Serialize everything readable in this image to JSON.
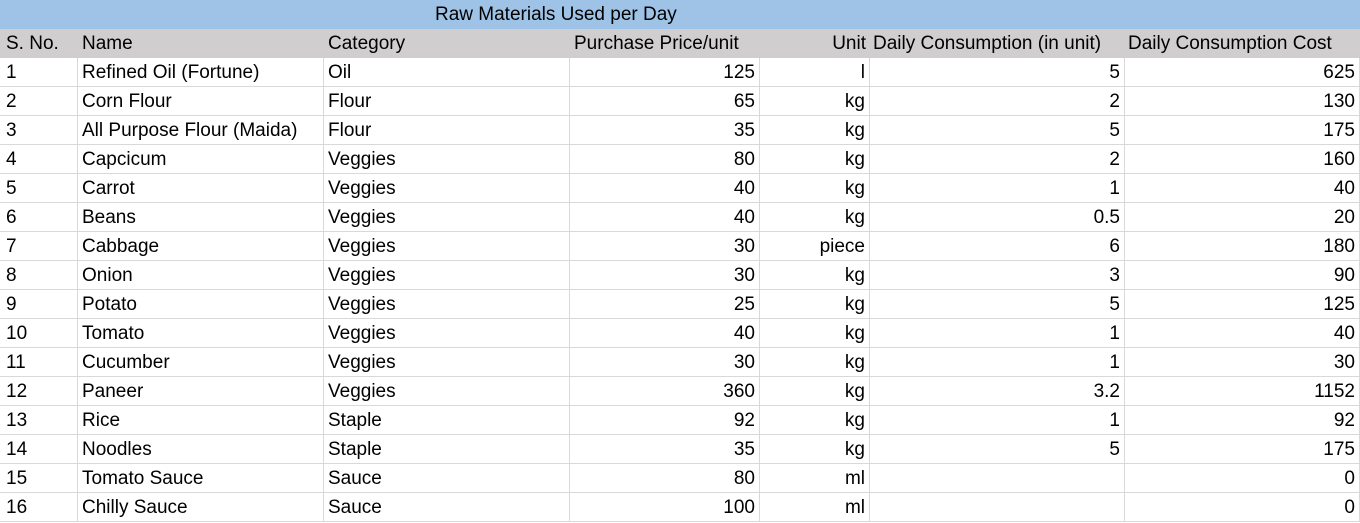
{
  "sheet": {
    "title": "Raw Materials Used per Day",
    "headers": [
      "S. No.",
      "Name",
      "Category",
      "Purchase Price/unit",
      "Unit",
      "Daily Consumption (in unit)",
      "Daily Consumption Cost"
    ],
    "rows": [
      [
        "1",
        "Refined Oil (Fortune)",
        "Oil",
        "125",
        "l",
        "5",
        "625"
      ],
      [
        "2",
        "Corn Flour",
        "Flour",
        "65",
        "kg",
        "2",
        "130"
      ],
      [
        "3",
        "All Purpose Flour (Maida)",
        "Flour",
        "35",
        "kg",
        "5",
        "175"
      ],
      [
        "4",
        "Capcicum",
        "Veggies",
        "80",
        "kg",
        "2",
        "160"
      ],
      [
        "5",
        "Carrot",
        "Veggies",
        "40",
        "kg",
        "1",
        "40"
      ],
      [
        "6",
        "Beans",
        "Veggies",
        "40",
        "kg",
        "0.5",
        "20"
      ],
      [
        "7",
        "Cabbage",
        "Veggies",
        "30",
        "piece",
        "6",
        "180"
      ],
      [
        "8",
        "Onion",
        "Veggies",
        "30",
        "kg",
        "3",
        "90"
      ],
      [
        "9",
        "Potato",
        "Veggies",
        "25",
        "kg",
        "5",
        "125"
      ],
      [
        "10",
        "Tomato",
        "Veggies",
        "40",
        "kg",
        "1",
        "40"
      ],
      [
        "11",
        "Cucumber",
        "Veggies",
        "30",
        "kg",
        "1",
        "30"
      ],
      [
        "12",
        "Paneer",
        "Veggies",
        "360",
        "kg",
        "3.2",
        "1152"
      ],
      [
        "13",
        "Rice",
        "Staple",
        "92",
        "kg",
        "1",
        "92"
      ],
      [
        "14",
        "Noodles",
        "Staple",
        "35",
        "kg",
        "5",
        "175"
      ],
      [
        "15",
        "Tomato Sauce",
        "Sauce",
        "80",
        "ml",
        "",
        "0"
      ],
      [
        "16",
        "Chilly Sauce",
        "Sauce",
        "100",
        "ml",
        "",
        "0"
      ]
    ]
  },
  "colors": {
    "title_background": "#9fc3e6",
    "header_background": "#d0cece",
    "gridline": "#d9d9d9"
  }
}
